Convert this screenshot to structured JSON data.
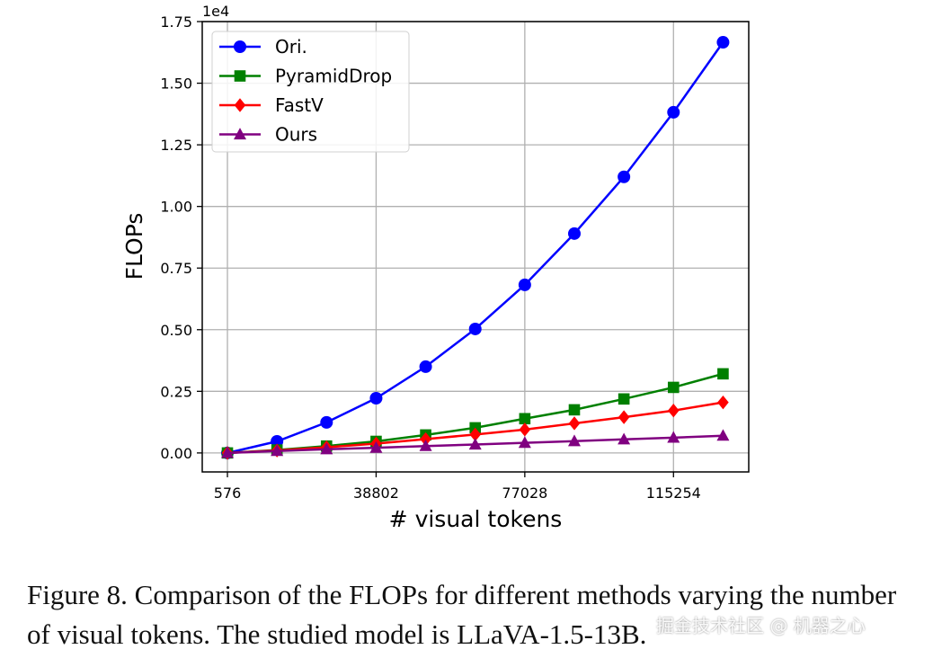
{
  "chart_data": {
    "type": "line",
    "xlabel": "# visual tokens",
    "ylabel": "FLOPs",
    "y_offset_label": "1e4",
    "x": [
      576,
      13318,
      26060,
      38802,
      51544,
      64286,
      77028,
      89770,
      102512,
      115254,
      127996
    ],
    "x_ticks": [
      576,
      38802,
      77028,
      115254
    ],
    "y_ticks": [
      "0.00",
      "0.25",
      "0.50",
      "0.75",
      "1.00",
      "1.25",
      "1.50",
      "1.75"
    ],
    "xlim": [
      -5900,
      134600
    ],
    "ylim": [
      -0.077,
      1.75
    ],
    "grid": true,
    "legend_position": "top-left",
    "series": [
      {
        "name": "Ori.",
        "color": "#0000ff",
        "marker": "circle",
        "values": [
          0.0,
          0.047,
          0.124,
          0.222,
          0.35,
          0.503,
          0.682,
          0.89,
          1.12,
          1.382,
          1.666
        ]
      },
      {
        "name": "PyramidDrop",
        "color": "#008000",
        "marker": "square",
        "values": [
          0.0,
          0.012,
          0.028,
          0.047,
          0.073,
          0.102,
          0.139,
          0.175,
          0.219,
          0.266,
          0.321
        ]
      },
      {
        "name": "FastV",
        "color": "#ff0000",
        "marker": "diamond",
        "values": [
          0.0,
          0.01,
          0.023,
          0.038,
          0.056,
          0.075,
          0.095,
          0.12,
          0.145,
          0.172,
          0.205
        ]
      },
      {
        "name": "Ours",
        "color": "#800080",
        "marker": "triangle",
        "values": [
          0.0,
          0.008,
          0.015,
          0.021,
          0.028,
          0.034,
          0.041,
          0.048,
          0.055,
          0.062,
          0.07
        ]
      }
    ]
  },
  "caption": "Figure 8. Comparison of the FLOPs for different methods varying the number of visual tokens. The studied model is LLaVA-1.5-13B.",
  "watermark": "掘金技术社区 @ 机器之心"
}
